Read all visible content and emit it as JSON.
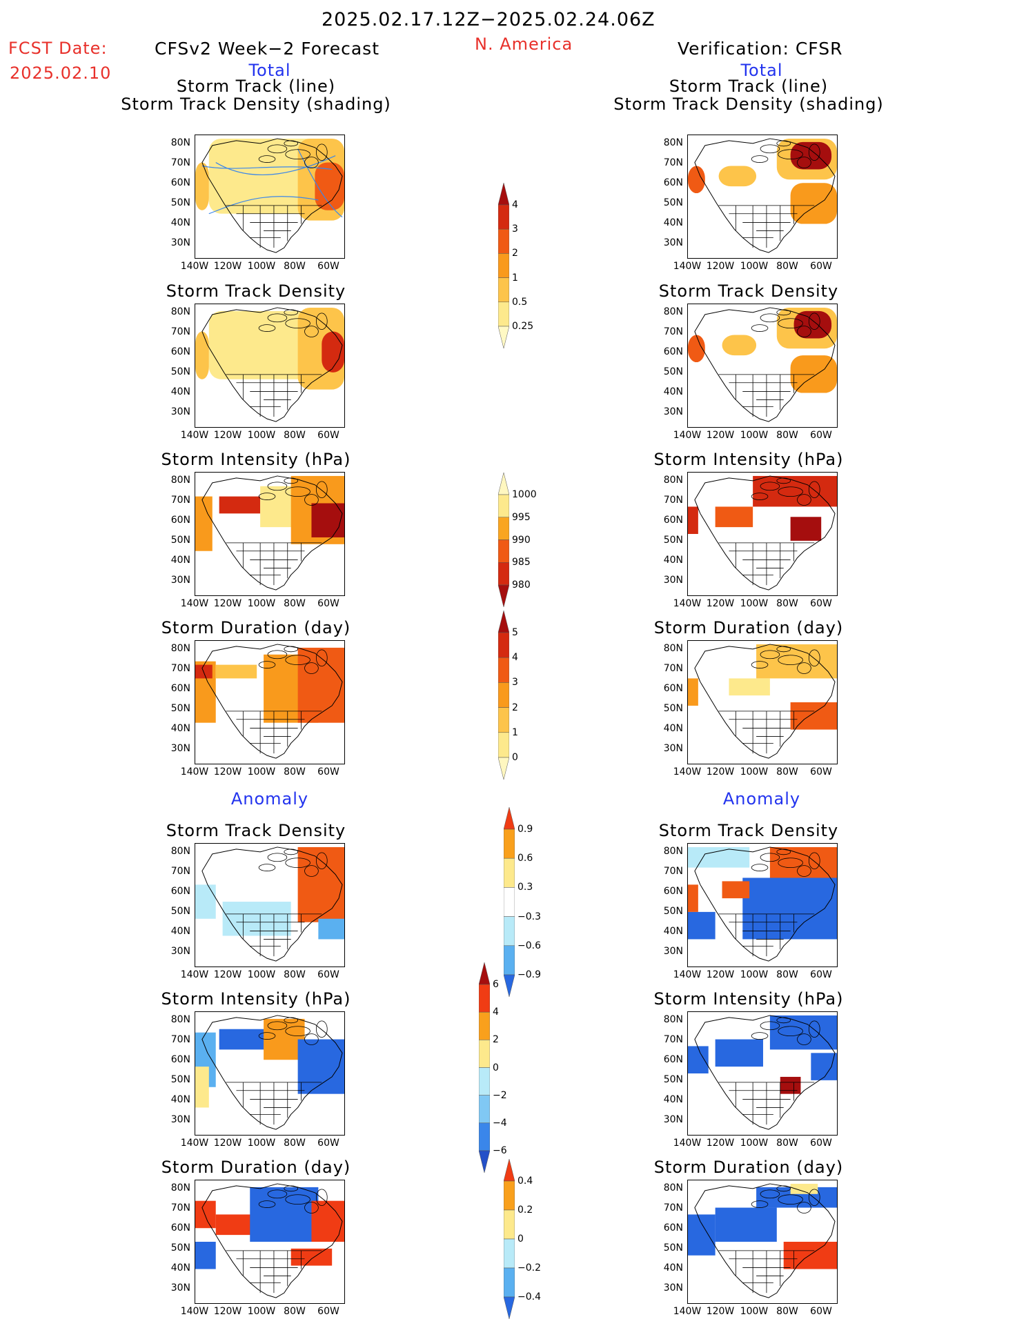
{
  "header": {
    "date_range": "2025.02.17.12Z−2025.02.24.06Z",
    "region": "N. America",
    "fcst_label": "FCST Date:",
    "fcst_date": "2025.02.10",
    "model_title": "CFSv2 Week−2 Forecast",
    "verification_title": "Verification: CFSR"
  },
  "sections": {
    "total_left": "Total",
    "total_right": "Total",
    "anomaly_left": "Anomaly",
    "anomaly_right": "Anomaly"
  },
  "panel_titles": {
    "track_line": "Storm Track (line)",
    "track_density_shading": "Storm Track Density (shading)",
    "track_density": "Storm Track Density",
    "intensity": "Storm Intensity (hPa)",
    "duration": "Storm Duration (day)"
  },
  "axes": {
    "lat_labels": [
      "80N",
      "70N",
      "60N",
      "50N",
      "40N",
      "30N"
    ],
    "lon_labels": [
      "140W",
      "120W",
      "100W",
      "80W",
      "60W"
    ]
  },
  "colorbars": {
    "density": {
      "labels": [
        "4",
        "3",
        "2",
        "1",
        "0.5",
        "0.25"
      ],
      "colors": [
        "#a50e0e",
        "#d42a10",
        "#f05a14",
        "#f99a1c",
        "#fdc44a",
        "#fde98c",
        "#fff9c4"
      ]
    },
    "intensity": {
      "labels": [
        "1000",
        "995",
        "990",
        "985",
        "980"
      ],
      "colors": [
        "#fff7c0",
        "#fde98c",
        "#f9a520",
        "#f05a14",
        "#d42a10",
        "#a50e0e"
      ]
    },
    "duration": {
      "labels": [
        "5",
        "4",
        "3",
        "2",
        "1",
        "0"
      ],
      "colors": [
        "#a50e0e",
        "#d42a10",
        "#f05a14",
        "#f99a1c",
        "#fdc44a",
        "#fde98c",
        "#fff7c0"
      ]
    },
    "anom_density": {
      "labels": [
        "0.9",
        "0.6",
        "0.3",
        "−0.3",
        "−0.6",
        "−0.9"
      ],
      "colors": [
        "#f03c14",
        "#f9a01c",
        "#fde98c",
        "#ffffff",
        "#b8eaf8",
        "#5ab0f0",
        "#2868e0"
      ]
    },
    "anom_intensity": {
      "labels": [
        "6",
        "4",
        "2",
        "0",
        "−2",
        "−4",
        "−6"
      ],
      "colors": [
        "#a50e0e",
        "#f03c14",
        "#f9a01c",
        "#fde98c",
        "#b8eaf8",
        "#80c8f4",
        "#3a86ea",
        "#2450c8"
      ]
    },
    "anom_duration": {
      "labels": [
        "0.4",
        "0.2",
        "0",
        "−0.2",
        "−0.4"
      ],
      "colors": [
        "#f03c14",
        "#f9a01c",
        "#fde98c",
        "#b8eaf8",
        "#5ab0f0",
        "#2868e0"
      ]
    }
  }
}
